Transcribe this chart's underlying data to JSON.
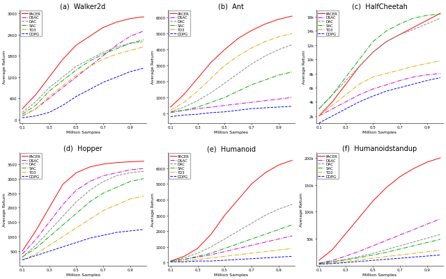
{
  "subtitles": [
    "(a)  Walker2d",
    "(b)  Ant",
    "(c)  HalfCheetah",
    "(d)  Hopper",
    "(e)  Humanoid",
    "(f)  Humanoidstandup"
  ],
  "xlabel": "Million Samples",
  "ylabel": "Average Return",
  "algorithms": [
    "PACER",
    "DSAC",
    "DAC",
    "SAC",
    "TD3",
    "DDPG"
  ],
  "colors": [
    "#ff0000",
    "#cc00cc",
    "#888888",
    "#00aa00",
    "#ddaa00",
    "#0000ff"
  ],
  "linestyles": [
    "-",
    "-.",
    "--",
    "-.",
    "-.",
    "--"
  ],
  "walker2d": {
    "x": [
      0.1,
      0.2,
      0.3,
      0.4,
      0.5,
      0.6,
      0.7,
      0.8,
      0.9,
      1.0
    ],
    "ylim": [
      -100,
      3100
    ],
    "yticks": [
      0,
      600,
      1200,
      1800,
      2400,
      3000
    ],
    "ytick_labels": [
      "0",
      "600",
      "1200",
      "1800",
      "2400",
      "3000"
    ],
    "xticks": [
      0.1,
      0.3,
      0.5,
      0.7,
      0.9
    ],
    "xtick_labels": [
      "0.1",
      "0.3",
      "0.5",
      "0.7",
      "0.9"
    ],
    "PACER": [
      300,
      700,
      1200,
      1700,
      2100,
      2350,
      2600,
      2750,
      2850,
      2900
    ],
    "DSAC": [
      100,
      300,
      600,
      900,
      1200,
      1500,
      1800,
      2100,
      2350,
      2500
    ],
    "DAC": [
      200,
      500,
      900,
      1200,
      1500,
      1700,
      1900,
      2050,
      2150,
      2200
    ],
    "SAC": [
      150,
      400,
      800,
      1100,
      1400,
      1650,
      1850,
      2000,
      2150,
      2250
    ],
    "TD3": [
      100,
      300,
      650,
      950,
      1250,
      1500,
      1700,
      1850,
      1950,
      2050
    ],
    "DDPG": [
      50,
      100,
      200,
      400,
      650,
      850,
      1050,
      1200,
      1350,
      1450
    ]
  },
  "ant": {
    "x": [
      0.1,
      0.2,
      0.3,
      0.4,
      0.5,
      0.6,
      0.7,
      0.8,
      0.9,
      1.0
    ],
    "ylim": [
      -600,
      6500
    ],
    "yticks": [
      0,
      1000,
      2000,
      3000,
      4000,
      5000,
      6000
    ],
    "ytick_labels": [
      "0",
      "1000",
      "2000",
      "3000",
      "4000",
      "5000",
      "6000"
    ],
    "xticks": [
      0.1,
      0.3,
      0.5,
      0.7,
      0.9
    ],
    "xtick_labels": [
      "0.1",
      "0.3",
      "0.5",
      "0.7",
      "0.9"
    ],
    "PACER": [
      400,
      1200,
      2200,
      3200,
      4000,
      4700,
      5200,
      5600,
      5900,
      6100
    ],
    "DSAC": [
      100,
      200,
      300,
      400,
      500,
      600,
      700,
      800,
      900,
      1000
    ],
    "DAC": [
      100,
      400,
      800,
      1300,
      1900,
      2500,
      3100,
      3600,
      4000,
      4300
    ],
    "SAC": [
      50,
      200,
      400,
      700,
      1000,
      1400,
      1800,
      2100,
      2400,
      2600
    ],
    "TD3": [
      200,
      700,
      1400,
      2200,
      3000,
      3600,
      4100,
      4500,
      4800,
      5000
    ],
    "DDPG": [
      -200,
      -100,
      -50,
      50,
      100,
      200,
      300,
      350,
      400,
      450
    ]
  },
  "halfcheetah": {
    "x": [
      0.1,
      0.2,
      0.3,
      0.4,
      0.5,
      0.6,
      0.7,
      0.8,
      0.9,
      1.0
    ],
    "ylim": [
      1000,
      17000
    ],
    "yticks": [
      2000,
      4000,
      6000,
      8000,
      10000,
      12000,
      14000,
      16000
    ],
    "ytick_labels": [
      "2k",
      "4k",
      "6k",
      "8k",
      "10k",
      "12k",
      "14k",
      "16k"
    ],
    "xticks": [
      0.1,
      0.3,
      0.5,
      0.7,
      0.9
    ],
    "xtick_labels": [
      "0.1",
      "0.3",
      "0.5",
      "0.7",
      "0.9"
    ],
    "PACER": [
      2000,
      4000,
      6500,
      9000,
      11000,
      12500,
      13500,
      14500,
      15500,
      16500
    ],
    "DSAC": [
      2000,
      3000,
      4000,
      5000,
      5800,
      6400,
      7000,
      7500,
      7800,
      8000
    ],
    "DAC": [
      3000,
      5000,
      7000,
      9000,
      11000,
      12500,
      13500,
      14200,
      15000,
      15800
    ],
    "SAC": [
      3000,
      5000,
      7500,
      10000,
      12500,
      14000,
      15000,
      15800,
      16200,
      16400
    ],
    "TD3": [
      2000,
      3500,
      5000,
      6500,
      7500,
      8000,
      8500,
      9000,
      9400,
      9800
    ],
    "DDPG": [
      1000,
      2000,
      3000,
      4000,
      4800,
      5500,
      6000,
      6500,
      7000,
      7400
    ]
  },
  "hopper": {
    "x": [
      0.1,
      0.2,
      0.3,
      0.4,
      0.5,
      0.6,
      0.7,
      0.8,
      0.9,
      1.0
    ],
    "ylim": [
      0,
      3900
    ],
    "yticks": [
      500,
      1000,
      1500,
      2000,
      2500,
      3000,
      3500
    ],
    "ytick_labels": [
      "500",
      "1000",
      "1500",
      "2000",
      "2500",
      "3000",
      "3500"
    ],
    "xticks": [
      0.1,
      0.3,
      0.5,
      0.7,
      0.9
    ],
    "xtick_labels": [
      "0.1",
      "0.3",
      "0.5",
      "0.7",
      "0.9"
    ],
    "PACER": [
      500,
      1200,
      2000,
      2800,
      3200,
      3400,
      3500,
      3550,
      3580,
      3600
    ],
    "DSAC": [
      400,
      900,
      1500,
      2100,
      2600,
      2900,
      3100,
      3200,
      3300,
      3350
    ],
    "DAC": [
      300,
      700,
      1200,
      1700,
      2200,
      2600,
      2900,
      3100,
      3200,
      3250
    ],
    "SAC": [
      300,
      600,
      1000,
      1400,
      1800,
      2200,
      2500,
      2700,
      2900,
      3000
    ],
    "TD3": [
      200,
      400,
      700,
      1000,
      1300,
      1600,
      1900,
      2100,
      2300,
      2400
    ],
    "DDPG": [
      200,
      350,
      500,
      650,
      800,
      950,
      1050,
      1150,
      1200,
      1250
    ]
  },
  "humanoid": {
    "x": [
      0.1,
      0.2,
      0.3,
      0.4,
      0.5,
      0.6,
      0.7,
      0.8,
      0.9,
      1.0
    ],
    "ylim": [
      -200,
      7000
    ],
    "yticks": [
      0,
      1000,
      2000,
      3000,
      4000,
      5000,
      6000
    ],
    "ytick_labels": [
      "0",
      "1000",
      "2000",
      "3000",
      "4000",
      "5000",
      "6000"
    ],
    "xticks": [
      0.1,
      0.3,
      0.5,
      0.7,
      0.9
    ],
    "xtick_labels": [
      "0.1",
      "0.3",
      "0.5",
      "0.7",
      "0.9"
    ],
    "PACER": [
      100,
      400,
      900,
      1800,
      3000,
      4000,
      5000,
      5700,
      6200,
      6500
    ],
    "DSAC": [
      100,
      200,
      350,
      500,
      700,
      900,
      1100,
      1300,
      1500,
      1700
    ],
    "DAC": [
      100,
      300,
      600,
      1000,
      1500,
      2000,
      2500,
      3000,
      3400,
      3700
    ],
    "SAC": [
      100,
      200,
      400,
      600,
      900,
      1200,
      1500,
      1800,
      2100,
      2400
    ],
    "TD3": [
      50,
      100,
      200,
      300,
      400,
      500,
      600,
      700,
      800,
      900
    ],
    "DDPG": [
      50,
      50,
      100,
      100,
      150,
      200,
      250,
      300,
      350,
      400
    ]
  },
  "humanoidstandup": {
    "x": [
      0.1,
      0.2,
      0.3,
      0.4,
      0.5,
      0.6,
      0.7,
      0.8,
      0.9,
      1.0
    ],
    "ylim": [
      0,
      210000
    ],
    "yticks": [
      50000,
      100000,
      150000,
      200000
    ],
    "ytick_labels": [
      "50k",
      "100k",
      "150k",
      "200k"
    ],
    "xticks": [
      0.1,
      0.3,
      0.5,
      0.7,
      0.9
    ],
    "xtick_labels": [
      "0.1",
      "0.3",
      "0.5",
      "0.7",
      "0.9"
    ],
    "PACER": [
      10000,
      30000,
      60000,
      90000,
      120000,
      145000,
      165000,
      180000,
      192000,
      200000
    ],
    "DSAC": [
      5000,
      10000,
      18000,
      27000,
      37000,
      47000,
      57000,
      67000,
      77000,
      87000
    ],
    "DAC": [
      5000,
      8000,
      12000,
      17000,
      23000,
      30000,
      37000,
      44000,
      51000,
      58000
    ],
    "SAC": [
      4000,
      7000,
      11000,
      15000,
      20000,
      25000,
      31000,
      37000,
      43000,
      49000
    ],
    "TD3": [
      3000,
      5000,
      8000,
      11000,
      14000,
      17000,
      20000,
      23000,
      26000,
      29000
    ],
    "DDPG": [
      3000,
      4000,
      6000,
      8000,
      10000,
      12000,
      14000,
      16000,
      18000,
      20000
    ]
  }
}
